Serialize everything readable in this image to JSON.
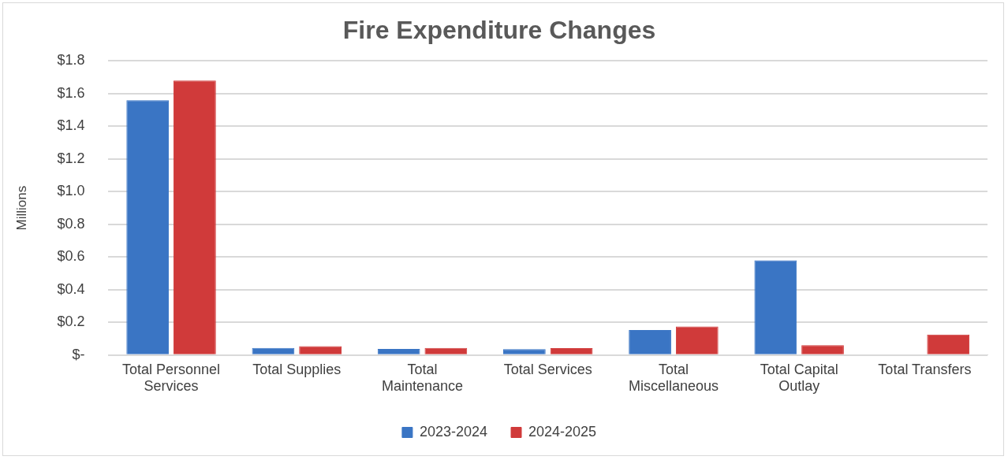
{
  "chart_data": {
    "type": "bar",
    "title": "Fire Expenditure Changes",
    "ylabel": "Millions",
    "categories": [
      "Total Personnel Services",
      "Total Supplies",
      "Total Maintenance",
      "Total Services",
      "Total Miscellaneous",
      "Total Capital Outlay",
      "Total Transfers"
    ],
    "series": [
      {
        "name": "2023-2024",
        "color": "#3a75c4",
        "values": [
          1.56,
          0.044,
          0.038,
          0.037,
          0.153,
          0.58,
          0
        ]
      },
      {
        "name": "2024-2025",
        "color": "#d03a3a",
        "values": [
          1.68,
          0.055,
          0.044,
          0.043,
          0.175,
          0.06,
          0.125
        ]
      }
    ],
    "ylim": [
      0,
      1.8
    ],
    "yticks": [
      {
        "value": 0,
        "label": "$-"
      },
      {
        "value": 0.2,
        "label": "$0.2"
      },
      {
        "value": 0.4,
        "label": "$0.4"
      },
      {
        "value": 0.6,
        "label": "$0.6"
      },
      {
        "value": 0.8,
        "label": "$0.8"
      },
      {
        "value": 1.0,
        "label": "$1.0"
      },
      {
        "value": 1.2,
        "label": "$1.2"
      },
      {
        "value": 1.4,
        "label": "$1.4"
      },
      {
        "value": 1.6,
        "label": "$1.6"
      },
      {
        "value": 1.8,
        "label": "$1.8"
      }
    ],
    "grid": "y",
    "legend": "bottom"
  }
}
